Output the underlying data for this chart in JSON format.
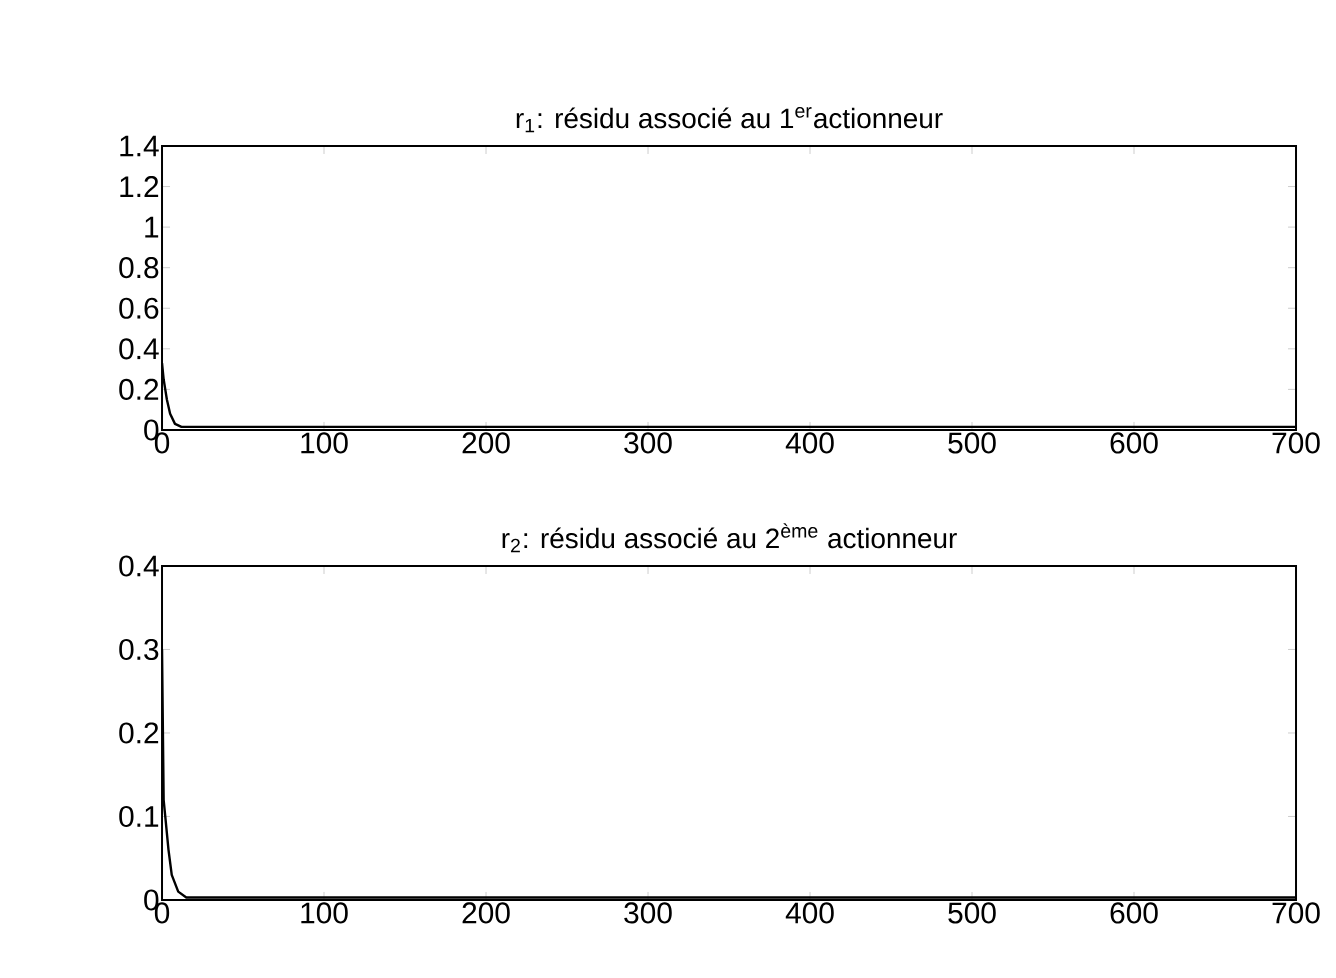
{
  "chart_data": [
    {
      "type": "line",
      "title": "r$_{1}$: résidu associé au 1$^{er}$actionneur",
      "x": [
        0,
        1,
        2,
        3,
        5,
        8,
        12,
        20,
        100,
        300,
        500,
        700
      ],
      "values": [
        0.33,
        0.25,
        0.2,
        0.15,
        0.08,
        0.03,
        0.015,
        0.015,
        0.015,
        0.015,
        0.015,
        0.015
      ],
      "color": "#000000",
      "xlim": [
        0,
        700
      ],
      "ylim": [
        0,
        1.4
      ],
      "xticks": [
        0,
        100,
        200,
        300,
        400,
        500,
        600,
        700
      ],
      "yticks": [
        0,
        0.2,
        0.4,
        0.6,
        0.8,
        1,
        1.2,
        1.4
      ]
    },
    {
      "type": "line",
      "title": "r$_{2}$: résidu associé au 2$^{ème}$ actionneur",
      "x": [
        0,
        1,
        2,
        4,
        6,
        10,
        15,
        100,
        300,
        500,
        700
      ],
      "values": [
        0.3,
        0.12,
        0.1,
        0.06,
        0.03,
        0.01,
        0.003,
        0.003,
        0.003,
        0.003,
        0.003
      ],
      "color": "#000000",
      "xlim": [
        0,
        700
      ],
      "ylim": [
        0,
        0.4
      ],
      "xticks": [
        0,
        100,
        200,
        300,
        400,
        500,
        600,
        700
      ],
      "yticks": [
        0,
        0.1,
        0.2,
        0.3,
        0.4
      ]
    }
  ]
}
